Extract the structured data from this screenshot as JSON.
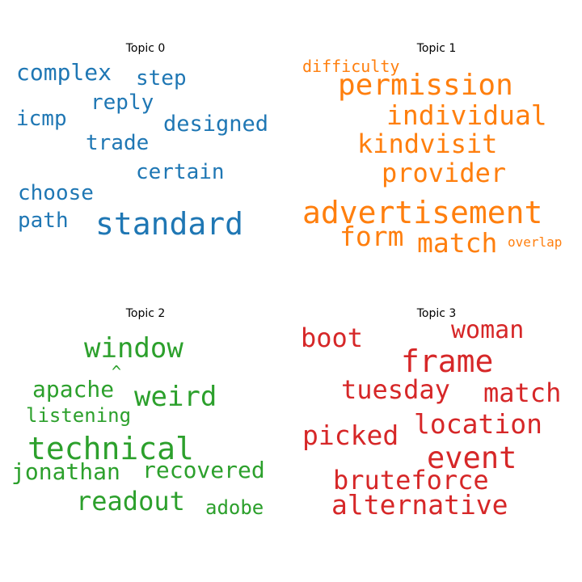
{
  "chart_data": [
    {
      "type": "wordcloud",
      "title": "Topic 0",
      "color": "#1f77b4",
      "words": [
        "standard",
        "complex",
        "step",
        "reply",
        "designed",
        "icmp",
        "trade",
        "certain",
        "choose",
        "path"
      ]
    },
    {
      "type": "wordcloud",
      "title": "Topic 1",
      "color": "#ff7f0e",
      "words": [
        "advertisement",
        "permission",
        "individual",
        "kindvisit",
        "provider",
        "form",
        "match",
        "difficulty",
        "overlap"
      ]
    },
    {
      "type": "wordcloud",
      "title": "Topic 2",
      "color": "#2ca02c",
      "words": [
        "technical",
        "window",
        "weird",
        "apache",
        "^",
        "listening",
        "jonathan",
        "recovered",
        "readout",
        "adobe"
      ]
    },
    {
      "type": "wordcloud",
      "title": "Topic 3",
      "color": "#d62728",
      "words": [
        "frame",
        "event",
        "location",
        "boot",
        "woman",
        "tuesday",
        "match",
        "picked",
        "bruteforce",
        "alternative"
      ]
    }
  ]
}
